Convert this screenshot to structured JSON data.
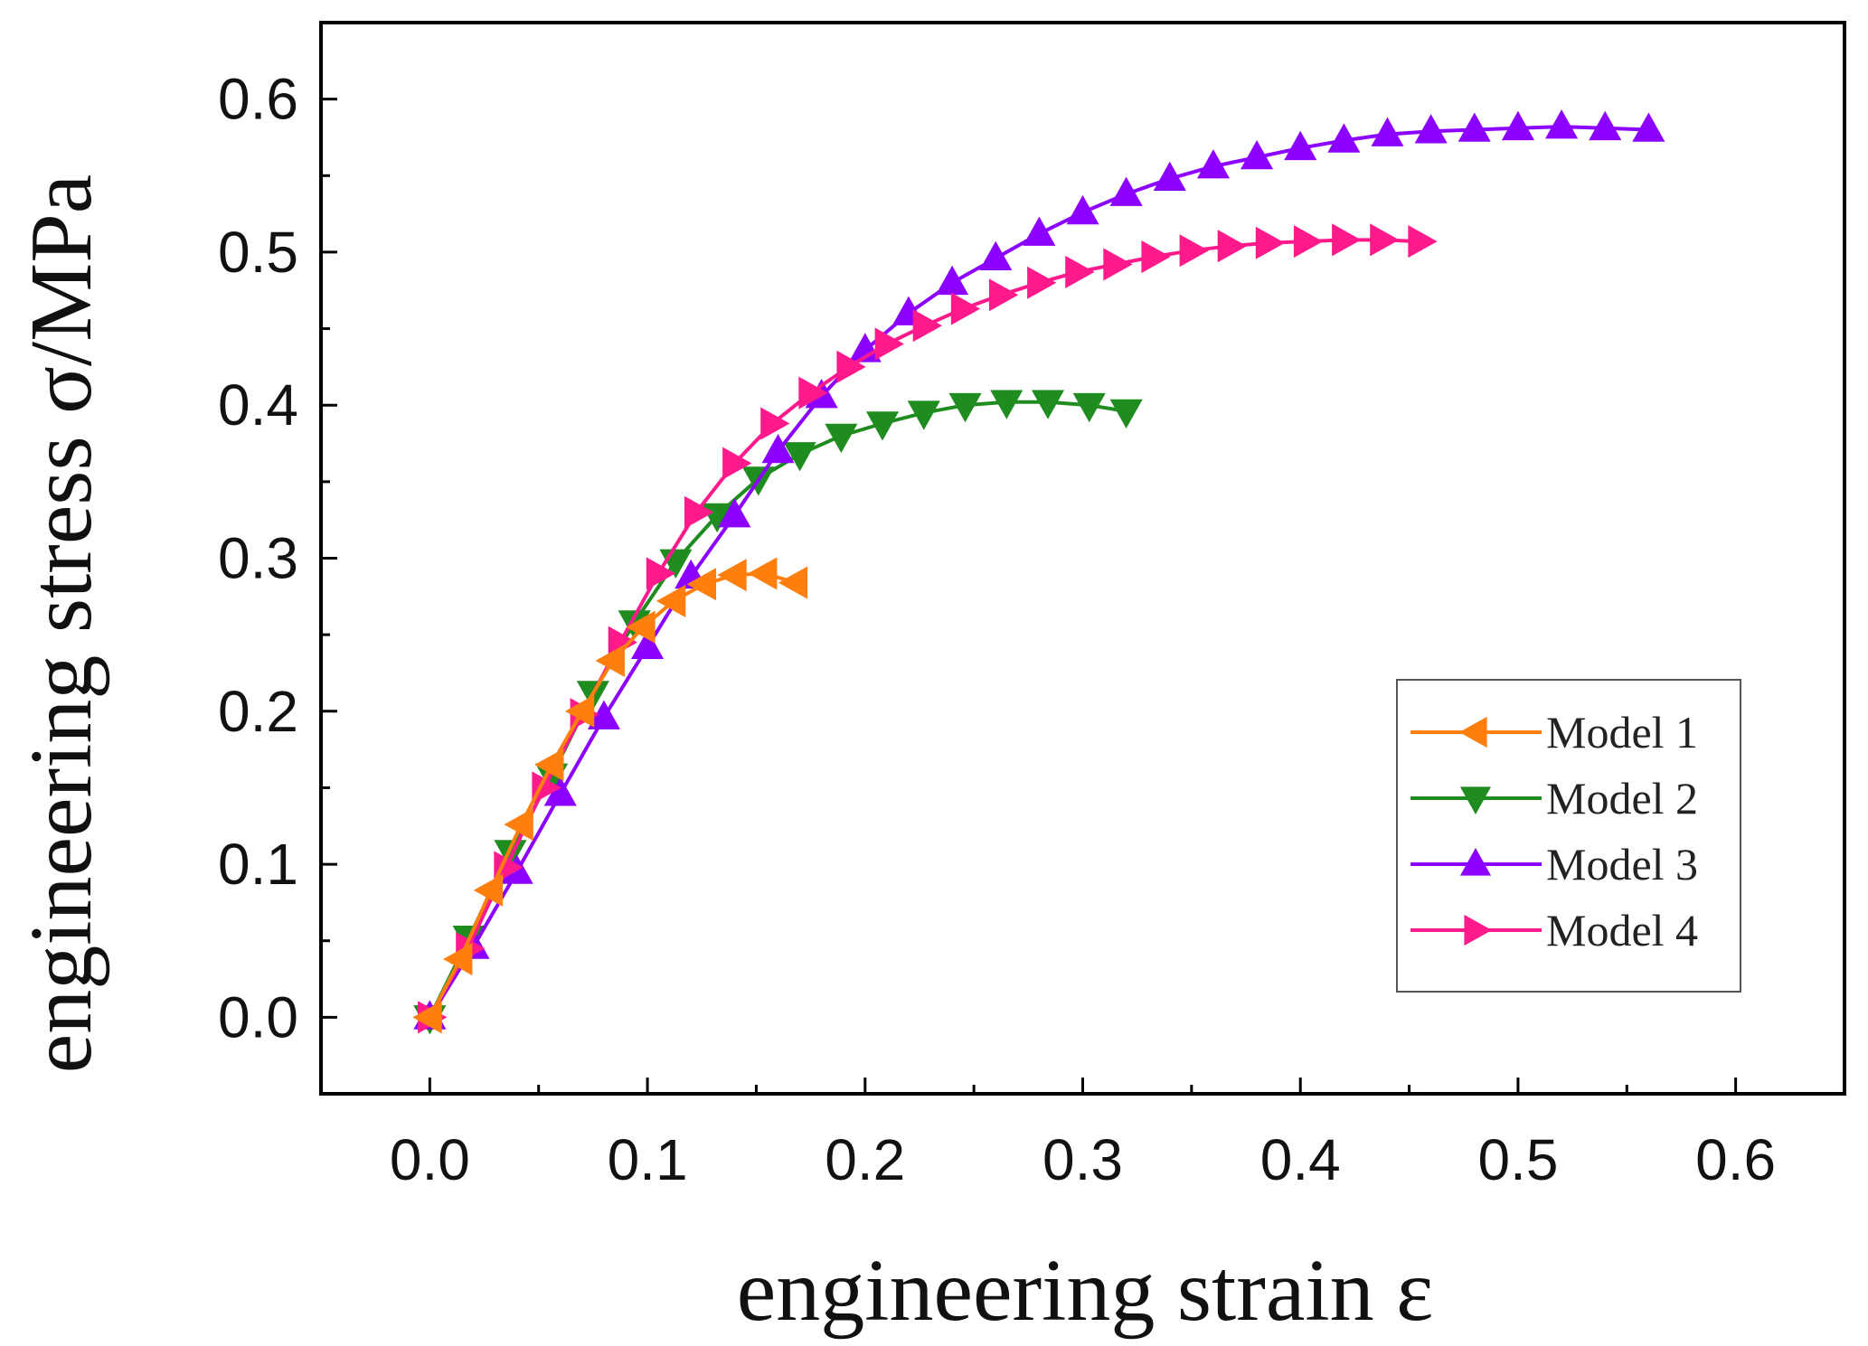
{
  "chart_data": {
    "type": "line",
    "title": "",
    "xlabel": "engineering strain ε",
    "ylabel": "engineering stress σ/MPa",
    "xlim": [
      -0.05,
      0.65
    ],
    "ylim": [
      -0.05,
      0.65
    ],
    "xticks": [
      0.0,
      0.1,
      0.2,
      0.3,
      0.4,
      0.5,
      0.6
    ],
    "yticks": [
      0.0,
      0.1,
      0.2,
      0.3,
      0.4,
      0.5,
      0.6
    ],
    "xtick_labels": [
      "0.0",
      "0.1",
      "0.2",
      "0.3",
      "0.4",
      "0.5",
      "0.6"
    ],
    "ytick_labels": [
      "0.0",
      "0.1",
      "0.2",
      "0.3",
      "0.4",
      "0.5",
      "0.6"
    ],
    "grid": false,
    "legend_position": "bottom-right",
    "series": [
      {
        "name": "Model 1",
        "color": "#FF7F0E",
        "marker": "triangle-left",
        "x": [
          0.0,
          0.014,
          0.028,
          0.042,
          0.056,
          0.07,
          0.084,
          0.098,
          0.112,
          0.126,
          0.14,
          0.154,
          0.168
        ],
        "y": [
          0.0,
          0.038,
          0.083,
          0.126,
          0.165,
          0.2,
          0.233,
          0.255,
          0.272,
          0.283,
          0.289,
          0.29,
          0.284
        ]
      },
      {
        "name": "Model 2",
        "color": "#1E8C1E",
        "marker": "triangle-down",
        "x": [
          0.0,
          0.018,
          0.037,
          0.056,
          0.075,
          0.094,
          0.113,
          0.132,
          0.151,
          0.17,
          0.189,
          0.208,
          0.227,
          0.246,
          0.265,
          0.284,
          0.303,
          0.32
        ],
        "y": [
          0.0,
          0.052,
          0.108,
          0.158,
          0.212,
          0.258,
          0.298,
          0.328,
          0.352,
          0.368,
          0.38,
          0.388,
          0.395,
          0.4,
          0.402,
          0.402,
          0.4,
          0.396
        ]
      },
      {
        "name": "Model 3",
        "color": "#8B00FF",
        "marker": "triangle-up",
        "x": [
          0.0,
          0.02,
          0.04,
          0.06,
          0.08,
          0.1,
          0.12,
          0.14,
          0.16,
          0.18,
          0.2,
          0.22,
          0.24,
          0.26,
          0.28,
          0.3,
          0.32,
          0.34,
          0.36,
          0.38,
          0.4,
          0.42,
          0.44,
          0.46,
          0.48,
          0.5,
          0.52,
          0.54,
          0.56
        ],
        "y": [
          0.0,
          0.046,
          0.095,
          0.146,
          0.196,
          0.242,
          0.288,
          0.328,
          0.37,
          0.406,
          0.436,
          0.46,
          0.48,
          0.496,
          0.512,
          0.526,
          0.538,
          0.548,
          0.556,
          0.562,
          0.568,
          0.573,
          0.577,
          0.579,
          0.58,
          0.581,
          0.582,
          0.581,
          0.58
        ]
      },
      {
        "name": "Model 4",
        "color": "#FF1A8C",
        "marker": "triangle-right",
        "x": [
          0.0,
          0.0175,
          0.035,
          0.0525,
          0.07,
          0.0875,
          0.105,
          0.1225,
          0.14,
          0.1575,
          0.175,
          0.1925,
          0.21,
          0.2275,
          0.245,
          0.2625,
          0.28,
          0.2975,
          0.315,
          0.3325,
          0.35,
          0.3675,
          0.385,
          0.4025,
          0.42,
          0.4375,
          0.455
        ],
        "y": [
          0.0,
          0.045,
          0.098,
          0.15,
          0.198,
          0.245,
          0.29,
          0.33,
          0.362,
          0.388,
          0.408,
          0.425,
          0.44,
          0.452,
          0.463,
          0.472,
          0.48,
          0.487,
          0.492,
          0.497,
          0.501,
          0.504,
          0.506,
          0.507,
          0.508,
          0.508,
          0.507
        ]
      }
    ]
  }
}
